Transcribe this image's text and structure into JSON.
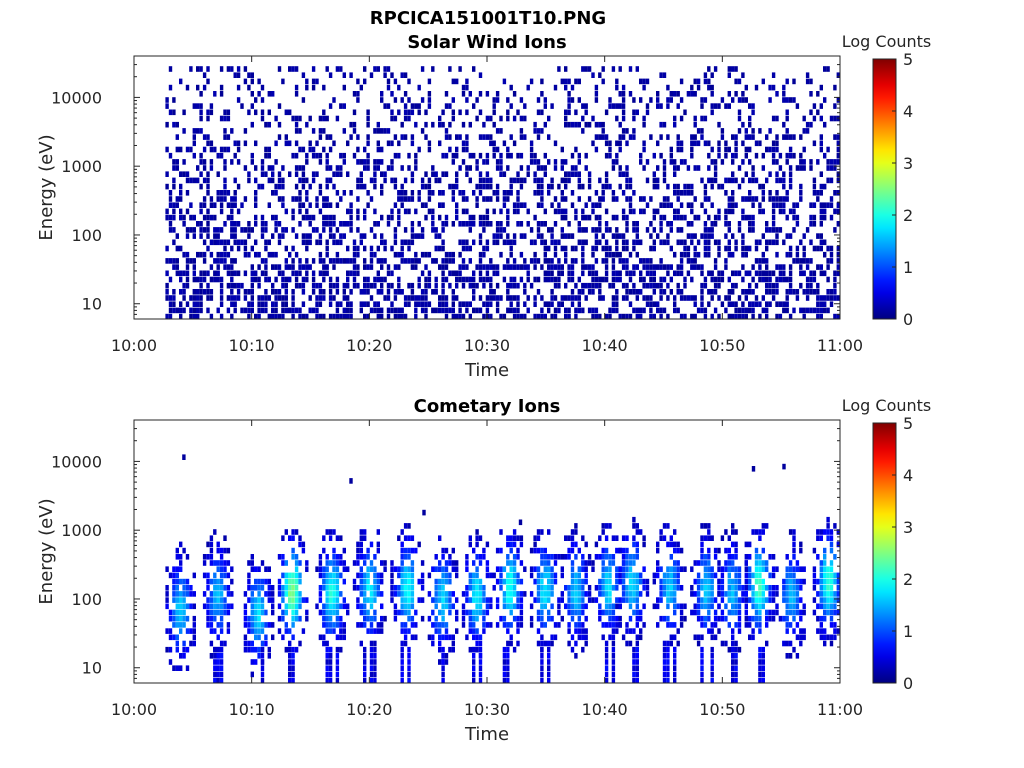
{
  "figure": {
    "title": "RPCICA151001T10.PNG"
  },
  "chart_data": [
    {
      "type": "heatmap",
      "title": "Solar Wind Ions",
      "xlabel": "Time",
      "ylabel": "Energy (eV)",
      "x_ticks": [
        "10:00",
        "10:10",
        "10:20",
        "10:30",
        "10:40",
        "10:50",
        "11:00"
      ],
      "xlim": [
        "10:00",
        "11:00"
      ],
      "y_scale": "log",
      "y_ticks": [
        10,
        100,
        1000,
        10000
      ],
      "y_tick_labels": [
        "10",
        "100",
        "1000",
        "10000"
      ],
      "ylim": [
        6,
        40000
      ],
      "data_start": "10:02:40",
      "colorbar": {
        "title": "Log Counts",
        "range": [
          0,
          5
        ],
        "ticks": [
          "0",
          "1",
          "2",
          "3",
          "4",
          "5"
        ],
        "colormap": "jet"
      },
      "pattern": {
        "style": "sparse",
        "base_level": 0.1,
        "level_jitter": 0.15,
        "density_low_energy": 0.55,
        "density_high_energy": 0.2,
        "top_energy": 30000
      }
    },
    {
      "type": "heatmap",
      "title": "Cometary Ions",
      "xlabel": "Time",
      "ylabel": "Energy (eV)",
      "x_ticks": [
        "10:00",
        "10:10",
        "10:20",
        "10:30",
        "10:40",
        "10:50",
        "11:00"
      ],
      "xlim": [
        "10:00",
        "11:00"
      ],
      "y_scale": "log",
      "y_ticks": [
        10,
        100,
        1000,
        10000
      ],
      "y_tick_labels": [
        "10",
        "100",
        "1000",
        "10000"
      ],
      "ylim": [
        6,
        40000
      ],
      "data_start": "10:02:40",
      "colorbar": {
        "title": "Log Counts",
        "range": [
          0,
          5
        ],
        "ticks": [
          "0",
          "1",
          "2",
          "3",
          "4",
          "5"
        ],
        "colormap": "jet"
      },
      "pattern": {
        "style": "bursts",
        "burst_times_min": [
          3.8,
          7.0,
          10.4,
          13.3,
          16.7,
          19.9,
          23.1,
          26.1,
          29.0,
          31.8,
          34.8,
          37.4,
          40.2,
          42.2,
          45.4,
          48.5,
          50.7,
          53.0,
          55.7,
          58.9
        ],
        "burst_center_ev": [
          70,
          110,
          60,
          130,
          120,
          140,
          140,
          100,
          110,
          150,
          140,
          130,
          150,
          170,
          150,
          140,
          130,
          160,
          110,
          180
        ],
        "burst_peak_level": [
          1.4,
          1.3,
          1.5,
          2.3,
          1.8,
          1.6,
          1.7,
          1.5,
          1.6,
          1.8,
          1.6,
          1.4,
          1.5,
          1.5,
          1.4,
          1.4,
          1.3,
          2.0,
          1.3,
          1.9
        ],
        "burst_halfwidth_min": 0.85,
        "burst_spread_decades": 0.55,
        "stray_points": [
          {
            "t_min": 4.1,
            "ev": 11500
          },
          {
            "t_min": 18.3,
            "ev": 5200
          },
          {
            "t_min": 24.5,
            "ev": 1800
          },
          {
            "t_min": 52.5,
            "ev": 7800
          },
          {
            "t_min": 55.1,
            "ev": 8400
          },
          {
            "t_min": 32.7,
            "ev": 1300
          }
        ]
      }
    }
  ]
}
